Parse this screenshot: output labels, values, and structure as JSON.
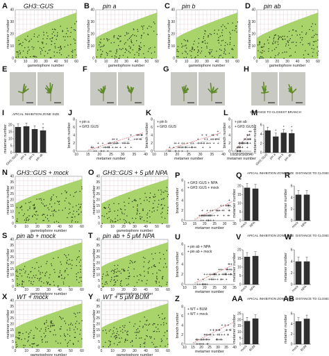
{
  "colors": {
    "green": "#a9d36b",
    "greenEdge": "#8dbf4a",
    "grid": "#d9b9c4",
    "dot": "#2a3a18",
    "bar": "#2f2f2f",
    "red": "#d9535a",
    "grey": "#9a9a9a",
    "photo": "#c9c9c4"
  },
  "panels": {
    "A": {
      "label": "A",
      "title": "GH3::GUS"
    },
    "B": {
      "label": "B",
      "title": "pin a"
    },
    "C": {
      "label": "C",
      "title": "pin b"
    },
    "D": {
      "label": "D",
      "title": "pin ab"
    },
    "E": {
      "label": "E"
    },
    "F": {
      "label": "F"
    },
    "G": {
      "label": "G"
    },
    "H": {
      "label": "H"
    },
    "I": {
      "label": "I",
      "title": "APICAL INHIBITION ZONE SIZE"
    },
    "J": {
      "label": "J"
    },
    "K": {
      "label": "K"
    },
    "L": {
      "label": "L"
    },
    "M": {
      "label": "M",
      "title": "DISTANCE TO CLOSEST BRANCH"
    },
    "N": {
      "label": "N",
      "title": "GH3::GUS + mock"
    },
    "O": {
      "label": "O",
      "title": "GH3::GUS + 5 μM NPA"
    },
    "P": {
      "label": "P"
    },
    "Q": {
      "label": "Q",
      "title": "APICAL INHIBITION ZONE SIZE"
    },
    "R": {
      "label": "R",
      "title": "DISTANCE TO CLOSEST BRANCH"
    },
    "S": {
      "label": "S",
      "title": "pin ab + mock"
    },
    "T": {
      "label": "T",
      "title": "pin ab + 5 μM NPA"
    },
    "U": {
      "label": "U"
    },
    "V": {
      "label": "V",
      "title": "APICAL INHIBITION ZONE SIZE"
    },
    "W": {
      "label": "W",
      "title": "DISTANCE TO CLOSEST BRANCH"
    },
    "X": {
      "label": "X",
      "title": "WT + mock"
    },
    "Y": {
      "label": "Y",
      "title": "WT + 5 μM BUM"
    },
    "Z": {
      "label": "Z"
    },
    "AA": {
      "label": "AA",
      "title": "APICAL INHIBITION ZONE SIZE"
    },
    "AB": {
      "label": "AB",
      "title": "DISTANCE TO CLOSEST BRANCH"
    }
  },
  "axes": {
    "metamer_number": "metamer number",
    "gametophore_number": "gametophore number",
    "branch_number": "branch number"
  },
  "chart_data": [
    {
      "id": "I",
      "type": "bar",
      "categories": [
        "GH3::GUS",
        "pin a",
        "pin b",
        "pin ab"
      ],
      "values": [
        18.5,
        19,
        17,
        16
      ],
      "ylim": [
        0,
        20
      ],
      "yticks": [
        0,
        5,
        10,
        15,
        20
      ],
      "significant": [
        false,
        false,
        false,
        true
      ]
    },
    {
      "id": "M",
      "type": "bar",
      "categories": [
        "GH3::GUS",
        "pin a",
        "pin b",
        "pin ab"
      ],
      "values": [
        4.8,
        3.5,
        4.3,
        4.2
      ],
      "ylim": [
        0,
        6
      ],
      "yticks": [
        0,
        2,
        4,
        6
      ],
      "significant": [
        false,
        true,
        true,
        true
      ]
    },
    {
      "id": "J",
      "type": "scatter",
      "legend": [
        "pin a",
        "GH3::GUS"
      ],
      "xlim": [
        10,
        40
      ],
      "ylim": [
        0,
        8
      ],
      "xticks": [
        10,
        15,
        20,
        25,
        30,
        35,
        40
      ],
      "yticks": [
        0,
        2,
        4,
        6,
        8
      ]
    },
    {
      "id": "K",
      "type": "scatter",
      "legend": [
        "pin b",
        "GH3::GUS"
      ],
      "xlim": [
        10,
        40
      ],
      "ylim": [
        0,
        8
      ],
      "xticks": [
        10,
        15,
        20,
        25,
        30,
        35,
        40
      ],
      "yticks": [
        0,
        2,
        4,
        6,
        8
      ]
    },
    {
      "id": "L",
      "type": "scatter",
      "legend": [
        "pin ab",
        "GH3::GUS"
      ],
      "xlim": [
        10,
        40
      ],
      "ylim": [
        0,
        8
      ],
      "xticks": [
        10,
        15,
        20,
        25,
        30,
        35,
        40
      ],
      "yticks": [
        0,
        2,
        4,
        6,
        8
      ]
    },
    {
      "id": "P",
      "type": "scatter",
      "legend": [
        "GH3::GUS + NPA",
        "GH3::GUS + mock"
      ],
      "xlim": [
        10,
        35
      ],
      "ylim": [
        0,
        8
      ],
      "xticks": [
        10,
        15,
        20,
        25,
        30,
        35
      ],
      "yticks": [
        0,
        2,
        4,
        6,
        8
      ]
    },
    {
      "id": "U",
      "type": "scatter",
      "legend": [
        "pin ab + NPA",
        "pin ab + mock"
      ],
      "xlim": [
        10,
        35
      ],
      "ylim": [
        0,
        8
      ],
      "xticks": [
        10,
        15,
        20,
        25,
        30,
        35
      ],
      "yticks": [
        0,
        2,
        4,
        6,
        8
      ]
    },
    {
      "id": "Z",
      "type": "scatter",
      "legend": [
        "WT + BUM",
        "WT + mock"
      ],
      "xlim": [
        10,
        40
      ],
      "ylim": [
        0,
        8
      ],
      "xticks": [
        10,
        15,
        20,
        25,
        30,
        35,
        40
      ],
      "yticks": [
        0,
        2,
        4,
        6,
        8
      ]
    },
    {
      "id": "Q",
      "type": "bar",
      "categories": [
        "mock",
        "NPA"
      ],
      "values": [
        19,
        18.5
      ],
      "ylim": [
        0,
        20
      ],
      "yticks": [
        0,
        5,
        10,
        15,
        20
      ]
    },
    {
      "id": "R",
      "type": "bar",
      "categories": [
        "mock",
        "NPA"
      ],
      "values": [
        4.5,
        4.5
      ],
      "ylim": [
        0,
        6
      ],
      "yticks": [
        0,
        2,
        4,
        6
      ]
    },
    {
      "id": "V",
      "type": "bar",
      "categories": [
        "mock",
        "NPA"
      ],
      "values": [
        16,
        16.5
      ],
      "ylim": [
        0,
        20
      ],
      "yticks": [
        0,
        5,
        10,
        15,
        20
      ]
    },
    {
      "id": "W",
      "type": "bar",
      "categories": [
        "mock",
        "NPA"
      ],
      "values": [
        4,
        4
      ],
      "ylim": [
        0,
        6
      ],
      "yticks": [
        0,
        2,
        4,
        6
      ]
    },
    {
      "id": "AA",
      "type": "bar",
      "categories": [
        "mock",
        "BUM"
      ],
      "values": [
        19,
        21
      ],
      "ylim": [
        0,
        25
      ],
      "yticks": [
        0,
        5,
        10,
        15,
        20,
        25
      ]
    },
    {
      "id": "AB",
      "type": "bar",
      "categories": [
        "mock",
        "BUM"
      ],
      "values": [
        4.5,
        5
      ],
      "ylim": [
        0,
        6
      ],
      "yticks": [
        0,
        2,
        4,
        6
      ]
    }
  ],
  "area_charts": {
    "wide": {
      "xticks": [
        0,
        10,
        20,
        30,
        40,
        50,
        60
      ],
      "yticks": [
        0,
        5,
        10,
        15,
        20,
        25,
        30,
        35,
        40
      ]
    },
    "small": {
      "xticks": [
        0,
        10,
        20,
        30,
        40,
        50,
        60
      ],
      "yticks": [
        0,
        5,
        10,
        15,
        20,
        25,
        30,
        35,
        40
      ]
    }
  }
}
